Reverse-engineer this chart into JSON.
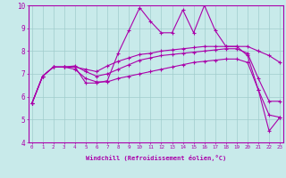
{
  "xlabel": "Windchill (Refroidissement éolien,°C)",
  "bg_color": "#c8eaea",
  "line_color": "#aa00aa",
  "grid_color": "#a0cccc",
  "xmin": 0,
  "xmax": 23,
  "ymin": 4,
  "ymax": 10,
  "line1_x": [
    0,
    1,
    2,
    3,
    4,
    5,
    6,
    7,
    8,
    9,
    10,
    11,
    12,
    13,
    14,
    15,
    16,
    17,
    18,
    19,
    20,
    21,
    22,
    23
  ],
  "line1_y": [
    5.7,
    6.9,
    7.3,
    7.3,
    7.3,
    6.6,
    6.6,
    6.7,
    7.9,
    8.9,
    9.9,
    9.3,
    8.8,
    8.8,
    9.8,
    8.8,
    10.0,
    8.9,
    8.2,
    8.2,
    7.8,
    6.3,
    4.5,
    5.1
  ],
  "line2_x": [
    0,
    1,
    2,
    3,
    4,
    5,
    6,
    7,
    8,
    9,
    10,
    11,
    12,
    13,
    14,
    15,
    16,
    17,
    18,
    19,
    20,
    21,
    22,
    23
  ],
  "line2_y": [
    5.7,
    6.9,
    7.3,
    7.3,
    7.3,
    7.2,
    7.1,
    7.35,
    7.55,
    7.7,
    7.85,
    7.9,
    8.0,
    8.05,
    8.1,
    8.15,
    8.2,
    8.2,
    8.2,
    8.2,
    8.2,
    8.0,
    7.8,
    7.5
  ],
  "line3_x": [
    0,
    1,
    2,
    3,
    4,
    5,
    6,
    7,
    8,
    9,
    10,
    11,
    12,
    13,
    14,
    15,
    16,
    17,
    18,
    19,
    20,
    21,
    22,
    23
  ],
  "line3_y": [
    5.7,
    6.9,
    7.3,
    7.3,
    7.35,
    7.1,
    6.9,
    7.0,
    7.2,
    7.4,
    7.6,
    7.7,
    7.8,
    7.85,
    7.9,
    7.95,
    8.0,
    8.05,
    8.1,
    8.1,
    7.9,
    6.8,
    5.8,
    5.8
  ],
  "line4_x": [
    0,
    1,
    2,
    3,
    4,
    5,
    6,
    7,
    8,
    9,
    10,
    11,
    12,
    13,
    14,
    15,
    16,
    17,
    18,
    19,
    20,
    21,
    22,
    23
  ],
  "line4_y": [
    5.7,
    6.9,
    7.3,
    7.3,
    7.2,
    6.8,
    6.65,
    6.65,
    6.8,
    6.9,
    7.0,
    7.1,
    7.2,
    7.3,
    7.4,
    7.5,
    7.55,
    7.6,
    7.65,
    7.65,
    7.5,
    6.3,
    5.2,
    5.1
  ]
}
